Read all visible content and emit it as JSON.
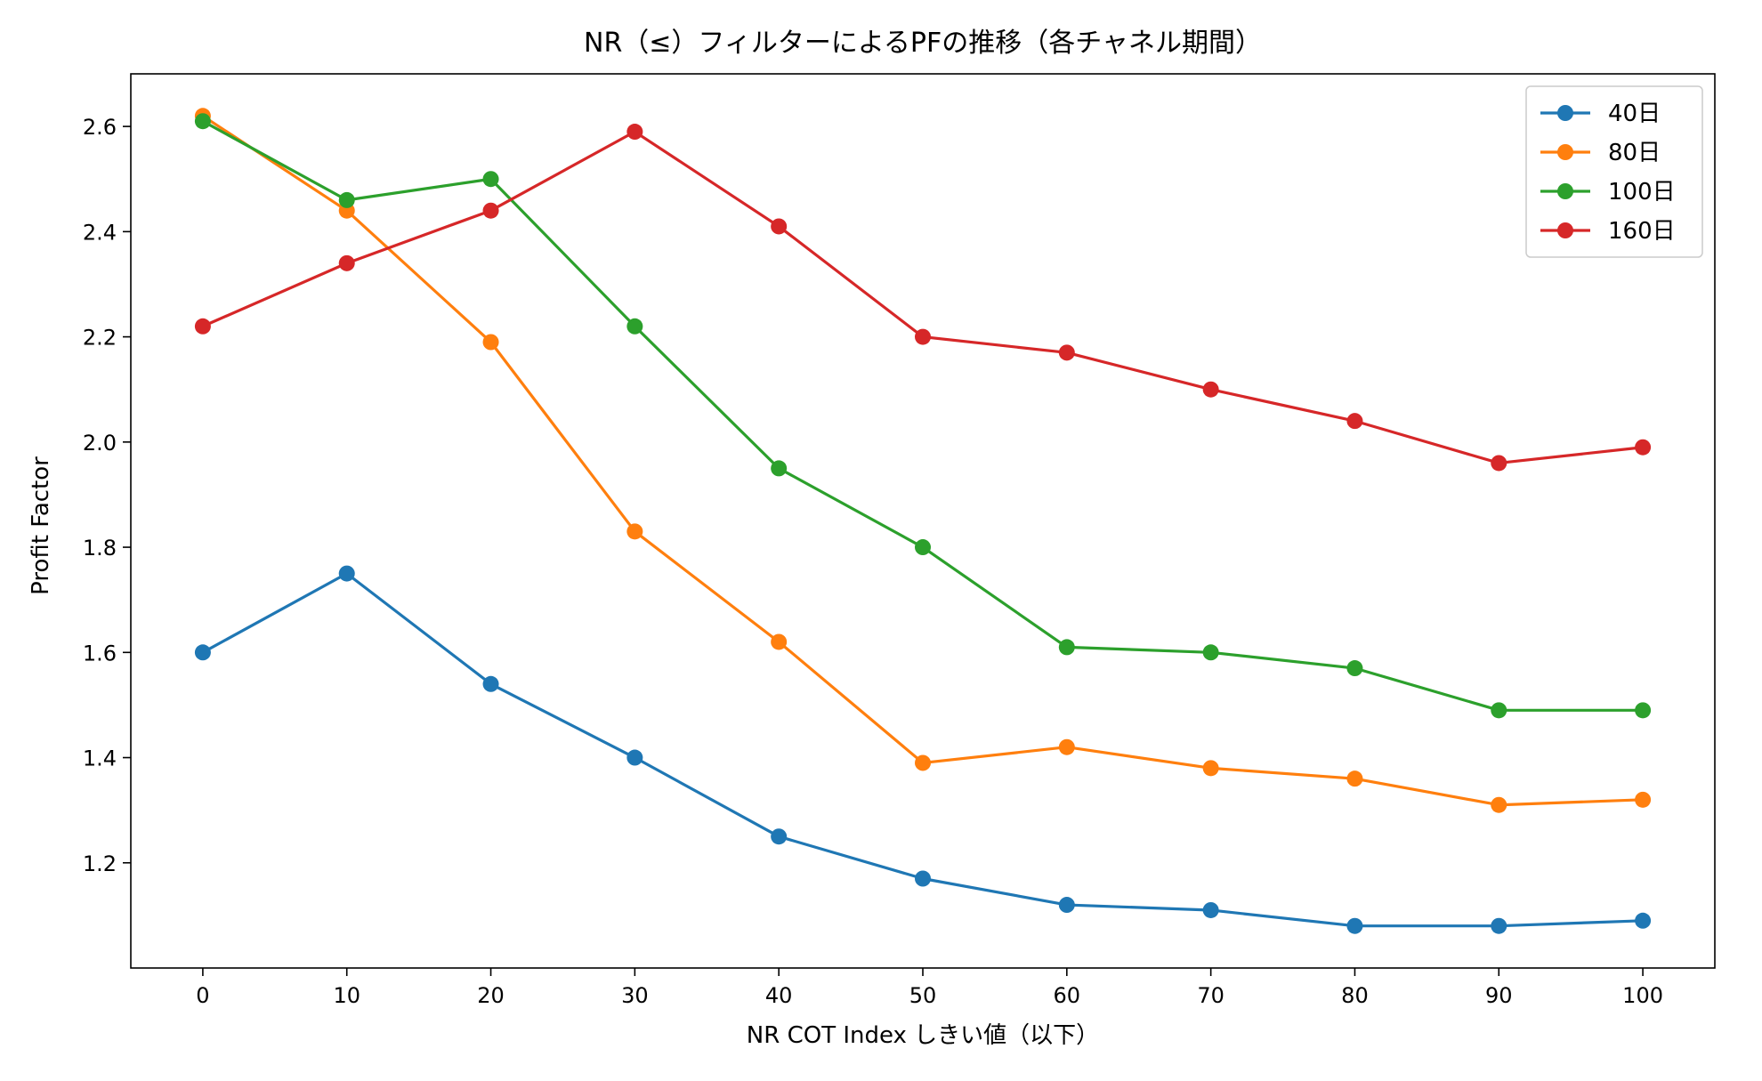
{
  "chart_data": {
    "type": "line",
    "title": "NR（≤）フィルターによるPFの推移（各チャネル期間）",
    "xlabel": "NR COT Index しきい値（以下）",
    "ylabel": "Profit Factor",
    "x": [
      0,
      10,
      20,
      30,
      40,
      50,
      60,
      70,
      80,
      90,
      100
    ],
    "xticks": [
      0,
      10,
      20,
      30,
      40,
      50,
      60,
      70,
      80,
      90,
      100
    ],
    "xtick_labels": [
      "0",
      "10",
      "20",
      "30",
      "40",
      "50",
      "60",
      "70",
      "80",
      "90",
      "100"
    ],
    "yticks": [
      1.2,
      1.4,
      1.6,
      1.8,
      2.0,
      2.2,
      2.4,
      2.6
    ],
    "ytick_labels": [
      "1.2",
      "1.4",
      "1.6",
      "1.8",
      "2.0",
      "2.2",
      "2.4",
      "2.6"
    ],
    "xlim": [
      -5,
      105
    ],
    "ylim": [
      1.0,
      2.7
    ],
    "grid": false,
    "legend_position": "top-right",
    "series": [
      {
        "name": "40日",
        "color": "#1f77b4",
        "values": [
          1.6,
          1.75,
          1.54,
          1.4,
          1.25,
          1.17,
          1.12,
          1.11,
          1.08,
          1.08,
          1.09
        ]
      },
      {
        "name": "80日",
        "color": "#ff7f0e",
        "values": [
          2.62,
          2.44,
          2.19,
          1.83,
          1.62,
          1.39,
          1.42,
          1.38,
          1.36,
          1.31,
          1.32
        ]
      },
      {
        "name": "100日",
        "color": "#2ca02c",
        "values": [
          2.61,
          2.46,
          2.5,
          2.22,
          1.95,
          1.8,
          1.61,
          1.6,
          1.57,
          1.49,
          1.49
        ]
      },
      {
        "name": "160日",
        "color": "#d62728",
        "values": [
          2.22,
          2.34,
          2.44,
          2.59,
          2.41,
          2.2,
          2.17,
          2.1,
          2.04,
          1.96,
          1.99
        ]
      }
    ]
  }
}
